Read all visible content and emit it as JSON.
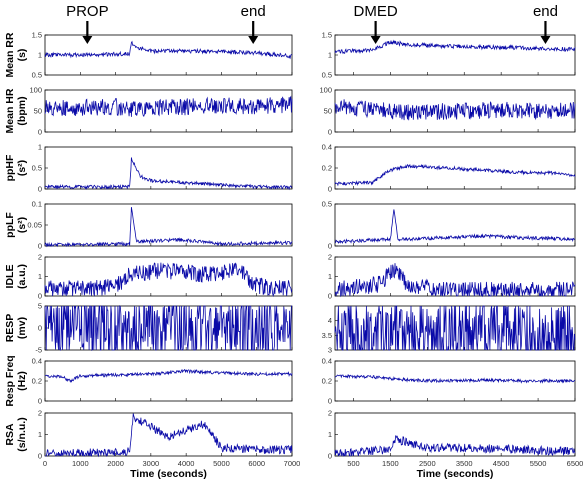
{
  "chart_data": [
    {
      "type": "line",
      "xlabel": "Time (seconds)",
      "xlim": [
        0,
        7000
      ],
      "xticks": [
        0,
        1000,
        2000,
        3000,
        4000,
        5000,
        6000,
        7000
      ],
      "events": [
        {
          "label": "PROP",
          "x": 1200
        },
        {
          "label": "end",
          "x": 5900
        }
      ],
      "panels": [
        {
          "ylabel": [
            "Mean RR",
            "(s)"
          ],
          "ylim": [
            0.5,
            1.5
          ],
          "yticks": [
            0.5,
            1,
            1.5
          ],
          "points": [
            [
              0,
              1.0
            ],
            [
              1000,
              1.0
            ],
            [
              2000,
              1.02
            ],
            [
              2400,
              1.03
            ],
            [
              2450,
              1.3
            ],
            [
              2600,
              1.18
            ],
            [
              3000,
              1.1
            ],
            [
              4000,
              1.1
            ],
            [
              5000,
              1.08
            ],
            [
              6000,
              1.05
            ],
            [
              7000,
              0.97
            ]
          ]
        },
        {
          "ylabel": [
            "Mean HR",
            "(bpm)"
          ],
          "ylim": [
            0,
            100
          ],
          "yticks": [
            0,
            50,
            100
          ],
          "points": [
            [
              0,
              58
            ],
            [
              1000,
              58
            ],
            [
              2000,
              60
            ],
            [
              2450,
              55
            ],
            [
              3000,
              58
            ],
            [
              4000,
              60
            ],
            [
              5000,
              62
            ],
            [
              6000,
              62
            ],
            [
              7000,
              65
            ]
          ]
        },
        {
          "ylabel": [
            "ppHF",
            "(s²)"
          ],
          "ylim": [
            0,
            1
          ],
          "yticks": [
            0,
            0.5,
            1
          ],
          "points": [
            [
              0,
              0.05
            ],
            [
              2400,
              0.05
            ],
            [
              2450,
              0.72
            ],
            [
              2700,
              0.3
            ],
            [
              3000,
              0.2
            ],
            [
              4000,
              0.15
            ],
            [
              5000,
              0.1
            ],
            [
              6000,
              0.05
            ],
            [
              7000,
              0.04
            ]
          ]
        },
        {
          "ylabel": [
            "ppLF",
            "(s²)"
          ],
          "ylim": [
            0,
            0.1
          ],
          "yticks": [
            0,
            0.05,
            0.1
          ],
          "points": [
            [
              0,
              0.003
            ],
            [
              2400,
              0.005
            ],
            [
              2450,
              0.09
            ],
            [
              2600,
              0.01
            ],
            [
              3800,
              0.015
            ],
            [
              5000,
              0.005
            ],
            [
              7000,
              0.008
            ]
          ]
        },
        {
          "ylabel": [
            "IDLE",
            "(a.u.)"
          ],
          "ylim": [
            0,
            2
          ],
          "yticks": [
            0,
            1,
            2
          ],
          "points": [
            [
              0,
              0.4
            ],
            [
              1000,
              0.4
            ],
            [
              2000,
              0.5
            ],
            [
              2500,
              1.2
            ],
            [
              3500,
              1.3
            ],
            [
              4500,
              1.1
            ],
            [
              5500,
              1.3
            ],
            [
              6000,
              0.5
            ],
            [
              7000,
              0.4
            ]
          ]
        },
        {
          "ylabel": [
            "RESP",
            "(mv)"
          ],
          "ylim": [
            -5,
            5
          ],
          "yticks": [
            -5,
            0,
            5
          ],
          "points": [
            [
              0,
              0
            ],
            [
              3500,
              0
            ],
            [
              7000,
              0
            ]
          ]
        },
        {
          "ylabel": [
            "Resp Freq",
            "(Hz)"
          ],
          "ylim": [
            0,
            0.4
          ],
          "yticks": [
            0,
            0.2,
            0.4
          ],
          "points": [
            [
              0,
              0.25
            ],
            [
              500,
              0.24
            ],
            [
              700,
              0.2
            ],
            [
              1000,
              0.25
            ],
            [
              3000,
              0.27
            ],
            [
              4000,
              0.3
            ],
            [
              5000,
              0.28
            ],
            [
              6000,
              0.27
            ],
            [
              7000,
              0.27
            ]
          ]
        },
        {
          "ylabel": [
            "RSA",
            "(s/n.u.)"
          ],
          "ylim": [
            0,
            2
          ],
          "yticks": [
            0,
            1,
            2
          ],
          "points": [
            [
              0,
              0.1
            ],
            [
              2400,
              0.2
            ],
            [
              2500,
              1.8
            ],
            [
              3500,
              0.9
            ],
            [
              4500,
              1.5
            ],
            [
              5000,
              0.4
            ],
            [
              6000,
              0.3
            ],
            [
              7000,
              0.3
            ]
          ]
        }
      ]
    },
    {
      "type": "line",
      "xlabel": "Time (seconds)",
      "xlim": [
        0,
        6500
      ],
      "xticks": [
        500,
        1500,
        2500,
        3500,
        4500,
        5500,
        6500
      ],
      "events": [
        {
          "label": "DMED",
          "x": 1100
        },
        {
          "label": "end",
          "x": 5700
        }
      ],
      "panels": [
        {
          "ylabel": [],
          "ylim": [
            0.5,
            1.5
          ],
          "yticks": [
            0.5,
            1,
            1.5
          ],
          "points": [
            [
              0,
              1.08
            ],
            [
              1000,
              1.12
            ],
            [
              1500,
              1.32
            ],
            [
              2000,
              1.26
            ],
            [
              3000,
              1.22
            ],
            [
              4000,
              1.2
            ],
            [
              5000,
              1.18
            ],
            [
              6000,
              1.15
            ],
            [
              6500,
              1.15
            ]
          ]
        },
        {
          "ylabel": [],
          "ylim": [
            0,
            100
          ],
          "yticks": [
            0,
            50,
            100
          ],
          "points": [
            [
              0,
              60
            ],
            [
              1000,
              55
            ],
            [
              1500,
              48
            ],
            [
              2500,
              48
            ],
            [
              3500,
              50
            ],
            [
              4500,
              52
            ],
            [
              5500,
              50
            ],
            [
              6500,
              52
            ]
          ]
        },
        {
          "ylabel": [],
          "ylim": [
            0,
            0.4
          ],
          "yticks": [
            0,
            0.2,
            0.4
          ],
          "points": [
            [
              0,
              0.05
            ],
            [
              1000,
              0.06
            ],
            [
              1500,
              0.18
            ],
            [
              2000,
              0.22
            ],
            [
              3000,
              0.2
            ],
            [
              4000,
              0.18
            ],
            [
              5000,
              0.16
            ],
            [
              6000,
              0.15
            ],
            [
              6500,
              0.12
            ]
          ]
        },
        {
          "ylabel": [],
          "ylim": [
            0,
            0.5
          ],
          "yticks": [
            0,
            0.5
          ],
          "points": [
            [
              0,
              0.05
            ],
            [
              1500,
              0.08
            ],
            [
              1600,
              0.45
            ],
            [
              1700,
              0.08
            ],
            [
              3000,
              0.1
            ],
            [
              4000,
              0.12
            ],
            [
              5000,
              0.1
            ],
            [
              6500,
              0.08
            ]
          ]
        },
        {
          "ylabel": [],
          "ylim": [
            0,
            2
          ],
          "yticks": [
            0,
            1,
            2
          ],
          "points": [
            [
              0,
              0.3
            ],
            [
              1200,
              0.6
            ],
            [
              1600,
              1.4
            ],
            [
              2000,
              0.5
            ],
            [
              3000,
              0.3
            ],
            [
              5000,
              0.3
            ],
            [
              6500,
              0.3
            ]
          ]
        },
        {
          "ylabel": [],
          "ylim": [
            3,
            4.5
          ],
          "yticks": [
            3,
            3.5,
            4
          ],
          "points": [
            [
              0,
              3.6
            ],
            [
              1500,
              3.5
            ],
            [
              3000,
              3.6
            ],
            [
              4500,
              3.7
            ],
            [
              5200,
              3.45
            ],
            [
              6500,
              3.5
            ]
          ]
        },
        {
          "ylabel": [],
          "ylim": [
            0,
            0.4
          ],
          "yticks": [
            0,
            0.2,
            0.4
          ],
          "points": [
            [
              0,
              0.25
            ],
            [
              1000,
              0.24
            ],
            [
              2000,
              0.21
            ],
            [
              3000,
              0.2
            ],
            [
              4000,
              0.21
            ],
            [
              5000,
              0.2
            ],
            [
              6500,
              0.2
            ]
          ]
        },
        {
          "ylabel": [],
          "ylim": [
            0,
            2
          ],
          "yticks": [
            0,
            1,
            2
          ],
          "points": [
            [
              0,
              0.1
            ],
            [
              1500,
              0.3
            ],
            [
              1600,
              0.8
            ],
            [
              2500,
              0.4
            ],
            [
              4000,
              0.35
            ],
            [
              5000,
              0.3
            ],
            [
              6500,
              0.2
            ]
          ]
        }
      ]
    }
  ]
}
